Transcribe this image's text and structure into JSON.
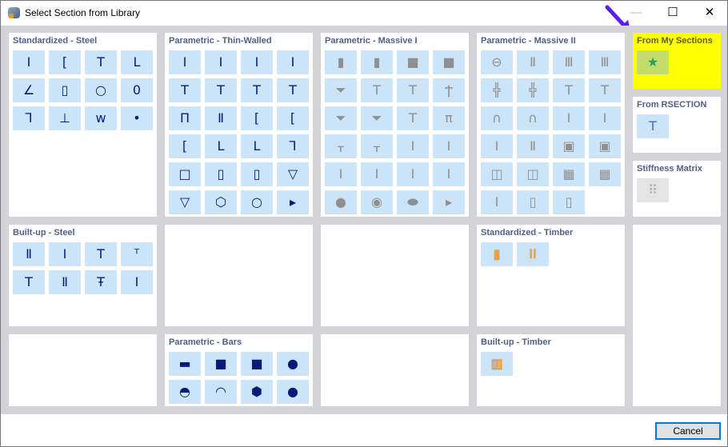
{
  "window": {
    "title": "Select Section from Library",
    "minimize": "—",
    "maximize": "☐",
    "close": "✕"
  },
  "colors": {
    "highlight": "#ffff00",
    "button_bg": "#cce4f7",
    "icon": "#0a1a7a",
    "arrow": "#5b1ef0"
  },
  "panels": [
    {
      "title": "Standardized - Steel",
      "icons": [
        [
          "I",
          "I-section-icon"
        ],
        [
          "[",
          "channel-icon"
        ],
        [
          "T",
          "tee-icon"
        ],
        [
          "L",
          "angle-icon"
        ],
        [
          "∠",
          "unequal-angle-icon"
        ],
        [
          "▯",
          "rect-hollow-icon"
        ],
        [
          "○",
          "pipe-icon"
        ],
        [
          "0",
          "oval-hollow-icon"
        ],
        [
          "⅂",
          "z-section-icon"
        ],
        [
          "⊥",
          "rail-icon"
        ],
        [
          "ᴡ",
          "sheet-pile-icon"
        ],
        [
          "•",
          "round-bar-icon"
        ]
      ]
    },
    {
      "title": "Parametric - Thin-Walled",
      "icons": [
        [
          "I",
          "i-icon"
        ],
        [
          "I",
          "i-tapered-icon"
        ],
        [
          "I",
          "i-asym-icon"
        ],
        [
          "I",
          "i-flange-icon"
        ],
        [
          "T",
          "t-icon"
        ],
        [
          "T",
          "t2-icon"
        ],
        [
          "T",
          "t3-icon"
        ],
        [
          "T",
          "t4-icon"
        ],
        [
          "Π",
          "pi-icon"
        ],
        [
          "Ⅱ",
          "double-i-icon"
        ],
        [
          "[",
          "c-icon"
        ],
        [
          "[",
          "c-lip-icon"
        ],
        [
          "[",
          "c2-icon"
        ],
        [
          "L",
          "l-icon"
        ],
        [
          "L",
          "l2-icon"
        ],
        [
          "⅂",
          "z-icon"
        ],
        [
          "□",
          "box-icon"
        ],
        [
          "▯",
          "rect-tube-icon"
        ],
        [
          "▯",
          "rect-tube2-icon"
        ],
        [
          "▽",
          "triangle-icon"
        ],
        [
          "▽",
          "trapezoid-icon"
        ],
        [
          "⬡",
          "hexagon-icon"
        ],
        [
          "○",
          "circle-tube-icon"
        ],
        [
          "▸",
          "more-icon"
        ]
      ]
    },
    {
      "title": "Parametric - Massive I",
      "icons": [
        [
          "▮",
          "rect-massive-icon"
        ],
        [
          "▮",
          "rect-rounded-icon"
        ],
        [
          "■",
          "square-massive-icon"
        ],
        [
          "■",
          "square-rounded-icon"
        ],
        [
          "⏷",
          "trapezoid-massive-icon"
        ],
        [
          "T",
          "t-massive-icon"
        ],
        [
          "T",
          "t-taper-icon"
        ],
        [
          "Ϯ",
          "t-haunch-icon"
        ],
        [
          "⏷",
          "t-trap-icon"
        ],
        [
          "⏷",
          "t-trap2-icon"
        ],
        [
          "T",
          "t-asym-icon"
        ],
        [
          "π",
          "double-t-icon"
        ],
        [
          "ᚁ",
          "ttt-icon"
        ],
        [
          "ᚁ",
          "ttt2-icon"
        ],
        [
          "I",
          "i-massive-icon"
        ],
        [
          "I",
          "i-massive2-icon"
        ],
        [
          "I",
          "i-massive3-icon"
        ],
        [
          "I",
          "i-massive4-icon"
        ],
        [
          "I",
          "i-massive5-icon"
        ],
        [
          "I",
          "i-massive6-icon"
        ],
        [
          "●",
          "circle-massive-icon"
        ],
        [
          "◉",
          "ring-massive-icon"
        ],
        [
          "⬬",
          "ellipse-massive-icon"
        ],
        [
          "▸",
          "more-icon"
        ]
      ]
    },
    {
      "title": "Parametric - Massive II",
      "icons": [
        [
          "⊖",
          "pill-icon"
        ],
        [
          "Ⅱ",
          "double-rect-icon"
        ],
        [
          "Ⅲ",
          "triple-rect-icon"
        ],
        [
          "Ⅲ",
          "quad-rect-icon"
        ],
        [
          "╬",
          "cross-icon"
        ],
        [
          "╬",
          "double-cross-icon"
        ],
        [
          "T",
          "t-massive-icon"
        ],
        [
          "T",
          "t-massive2-icon"
        ],
        [
          "∩",
          "u-massive-icon"
        ],
        [
          "∩",
          "u-massive2-icon"
        ],
        [
          "I",
          "i-massive-icon"
        ],
        [
          "I",
          "i-massive2-icon"
        ],
        [
          "I",
          "i-box-icon"
        ],
        [
          "Ⅱ",
          "double-i-icon"
        ],
        [
          "▣",
          "box-massive-icon"
        ],
        [
          "▣",
          "box-massive2-icon"
        ],
        [
          "◫",
          "double-box-icon"
        ],
        [
          "◫",
          "double-box2-icon"
        ],
        [
          "▦",
          "grid4-icon"
        ],
        [
          "▦",
          "grid6-icon"
        ],
        [
          "I",
          "i-composite-icon"
        ],
        [
          "▯",
          "rect-stack-icon"
        ],
        [
          "▯",
          "rect-stack2-icon"
        ]
      ]
    },
    {
      "title": "From My Sections",
      "icons": [
        [
          "★",
          "my-sections-star-icon"
        ]
      ]
    },
    {
      "title": "From RSECTION",
      "icons": [
        [
          "T",
          "rsection-icon"
        ]
      ]
    },
    {
      "title": "Stiffness Matrix",
      "icons": [
        [
          "⠿",
          "stiffness-matrix-icon"
        ]
      ]
    },
    {
      "title": "Built-up - Steel",
      "icons": [
        [
          "Ⅱ",
          "double-i-icon"
        ],
        [
          "I",
          "i-plate-icon"
        ],
        [
          "T",
          "t-plate-icon"
        ],
        [
          "ᵀ",
          "double-angle-icon"
        ],
        [
          "T",
          "t-double-icon"
        ],
        [
          "Ⅱ",
          "i-channels-icon"
        ],
        [
          "Ŧ",
          "i-cover-icon"
        ],
        [
          "I",
          "i-stiffened-icon"
        ]
      ]
    },
    {
      "title": "Standardized - Timber",
      "icons": [
        [
          "▮",
          "timber-rect-icon"
        ],
        [
          "ⅠⅠ",
          "timber-double-icon"
        ]
      ]
    },
    {
      "title": "Parametric - Bars",
      "icons": [
        [
          "▬",
          "flat-bar-icon"
        ],
        [
          "■",
          "square-bar-icon"
        ],
        [
          "■",
          "square-rounded-bar-icon"
        ],
        [
          "●",
          "round-bar-icon"
        ],
        [
          "◓",
          "half-round-icon"
        ],
        [
          "◠",
          "segment-icon"
        ],
        [
          "⬢",
          "hex-bar-icon"
        ],
        [
          "●",
          "round-bar2-icon"
        ]
      ]
    },
    {
      "title": "Built-up - Timber",
      "icons": [
        [
          "▥",
          "timber-builtup-icon"
        ]
      ]
    }
  ],
  "footer": {
    "cancel": "Cancel"
  }
}
